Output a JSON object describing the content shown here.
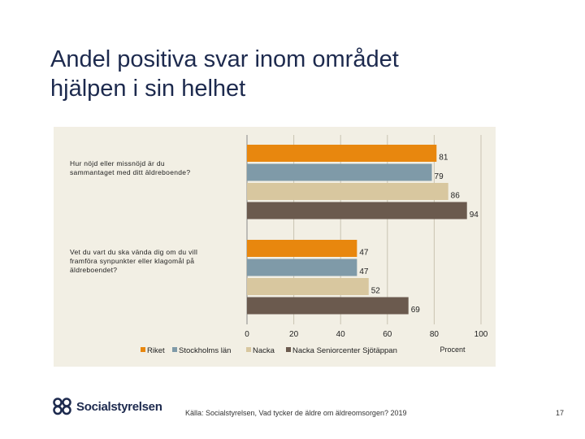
{
  "title_lines": [
    "Andel positiva svar inom området",
    "hjälpen i sin helhet"
  ],
  "source": "Källa: Socialstyrelsen, Vad tycker de äldre om äldreomsorgen? 2019",
  "page_number": "17",
  "logo_text": "Socialstyrelsen",
  "chart_data": {
    "type": "bar",
    "orientation": "horizontal",
    "categories": [
      [
        "Hur nöjd eller missnöjd är du",
        "sammantaget med ditt äldreboende?"
      ],
      [
        "Vet du vart du ska vända dig om du vill",
        "framföra synpunkter eller klagomål på",
        "äldreboendet?"
      ]
    ],
    "series": [
      {
        "name": "Riket",
        "color": "#e8870e",
        "values": [
          81,
          47
        ]
      },
      {
        "name": "Stockholms län",
        "color": "#7f9aa8",
        "values": [
          79,
          47
        ]
      },
      {
        "name": "Nacka",
        "color": "#d8c79f",
        "values": [
          86,
          52
        ]
      },
      {
        "name": "Nacka Seniorcenter Sjötäppan",
        "color": "#6b5a4e",
        "values": [
          94,
          69
        ]
      }
    ],
    "xlim": [
      0,
      100
    ],
    "xticks": [
      0,
      20,
      40,
      60,
      80,
      100
    ],
    "xlabel": "Procent",
    "legend_position": "bottom",
    "grid": true
  }
}
